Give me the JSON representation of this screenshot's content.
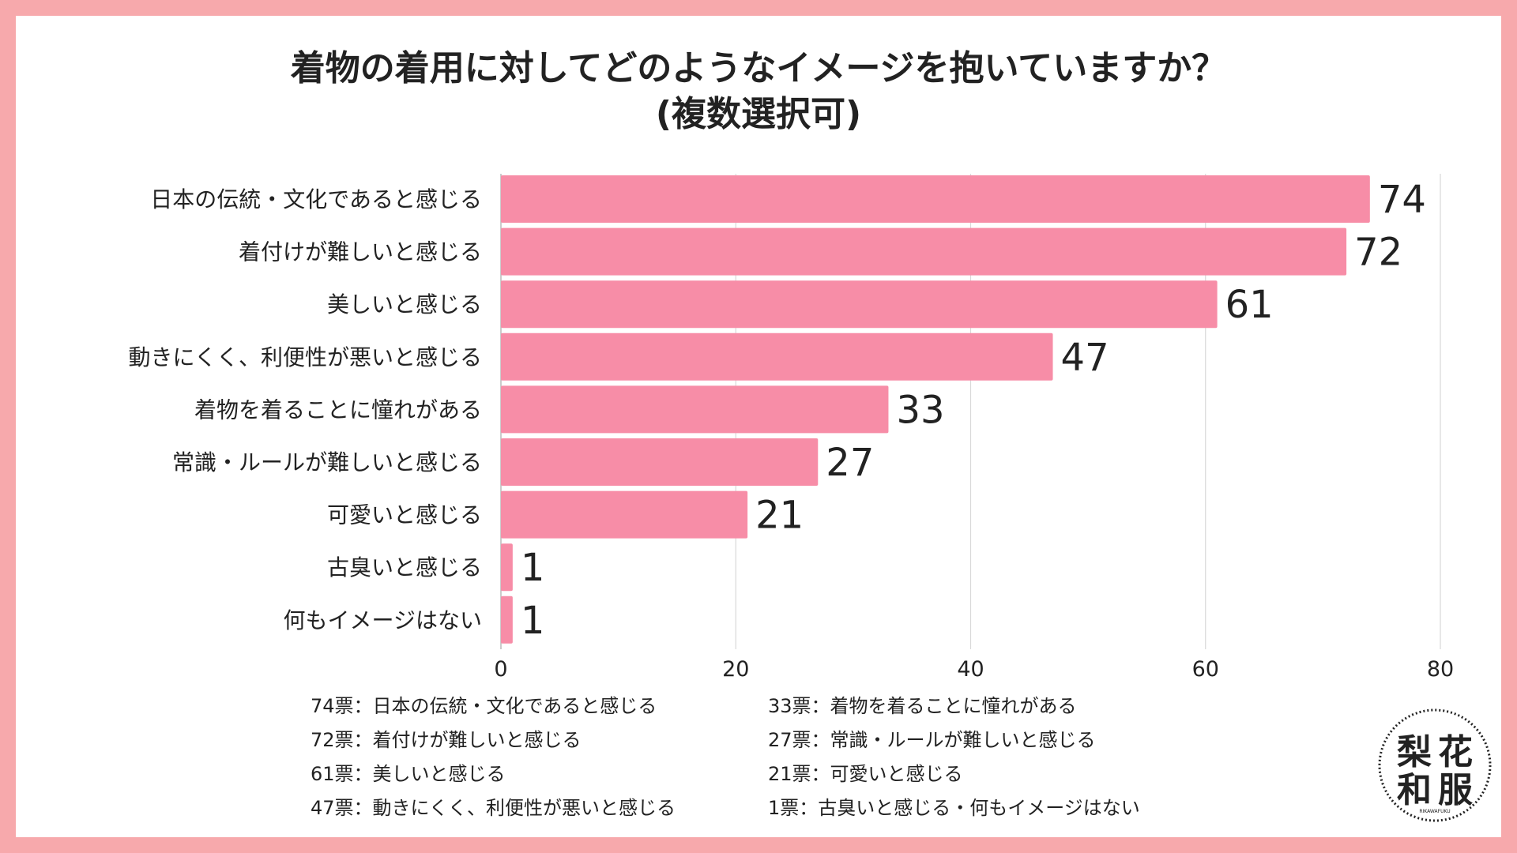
{
  "chart_data": {
    "type": "bar",
    "orientation": "horizontal",
    "title": "着物の着用に対してどのようなイメージを抱いていますか？",
    "subtitle": "(複数選択可)",
    "categories": [
      "日本の伝統・文化であると感じる",
      "着付けが難しいと感じる",
      "美しいと感じる",
      "動きにくく、利便性が悪いと感じる",
      "着物を着ることに憧れがある",
      "常識・ルールが難しいと感じる",
      "可愛いと感じる",
      "古臭いと感じる",
      "何もイメージはない"
    ],
    "values": [
      74,
      72,
      61,
      47,
      33,
      27,
      21,
      1,
      1
    ],
    "xlim": [
      0,
      80
    ],
    "xticks": [
      0,
      20,
      40,
      60,
      80
    ],
    "grid": true,
    "bar_color": "#f78da7"
  },
  "legend": {
    "left": [
      "74票：日本の伝統・文化であると感じる",
      "72票：着付けが難しいと感じる",
      "61票：美しいと感じる",
      "47票：動きにくく、利便性が悪いと感じる"
    ],
    "right": [
      "33票：着物を着ることに憧れがある",
      "27票：常識・ルールが難しいと感じる",
      "21票：可愛いと感じる",
      "1票：古臭いと感じる・何もイメージはない"
    ]
  },
  "logo": {
    "chars": [
      "梨",
      "花",
      "和",
      "服"
    ],
    "caption": "RIKAWAFUKU"
  },
  "colors": {
    "frame": "#f7a9ac",
    "bar": "#f78da7",
    "grid": "#d9d9d9",
    "text": "#222222"
  }
}
